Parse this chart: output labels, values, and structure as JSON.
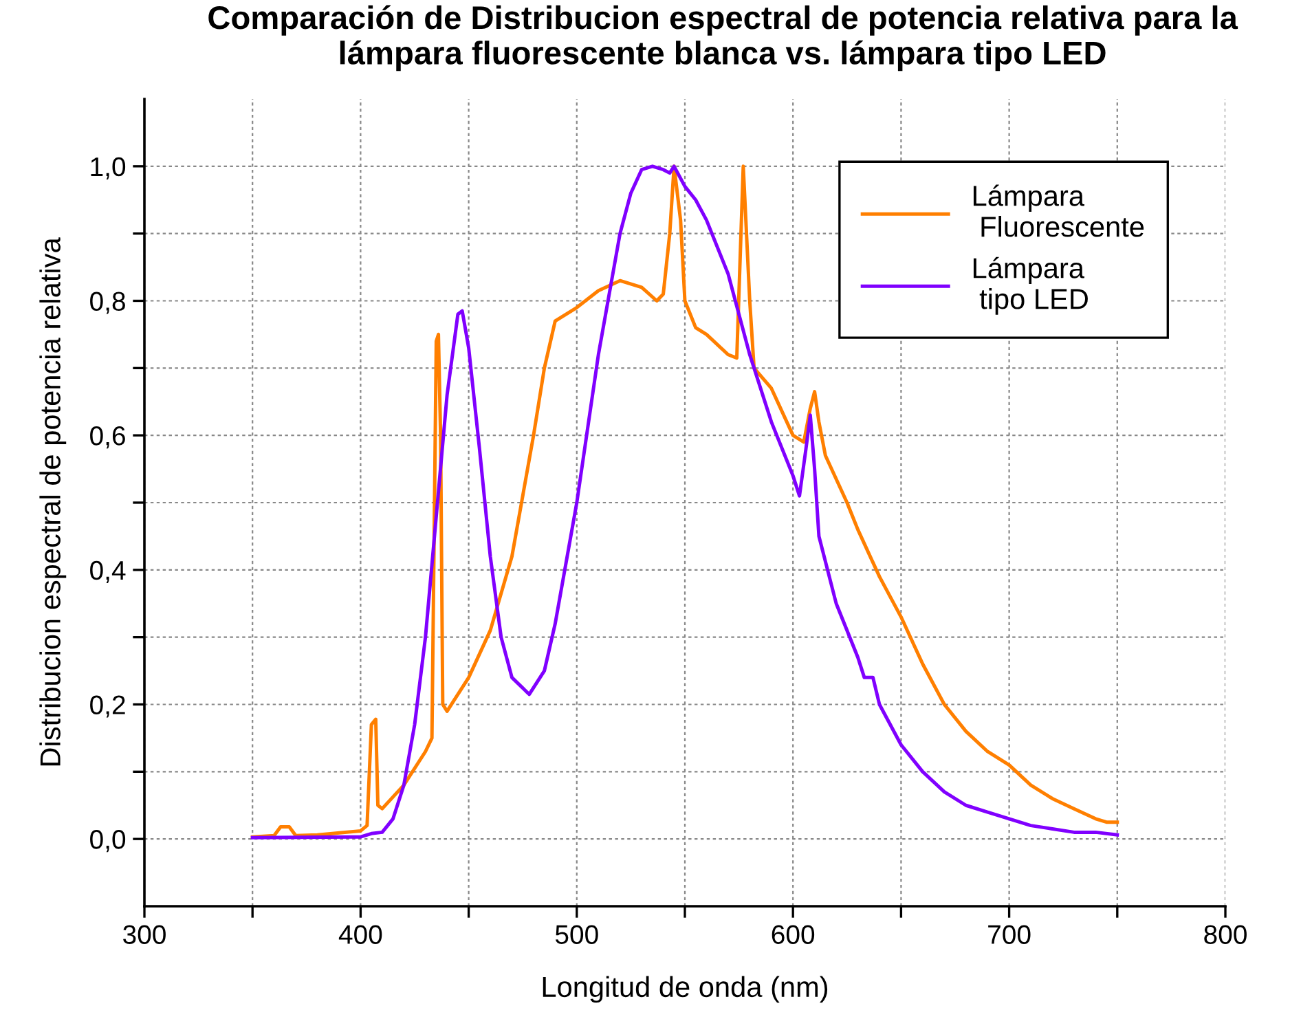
{
  "chart_data": {
    "type": "line",
    "title": "Comparación de Distribucion espectral de potencia relativa para la\nlámpara fluorescente blanca vs. lámpara tipo LED",
    "xlabel": "Longitud de onda (nm)",
    "ylabel": "Distribucion espectral de potencia relativa",
    "xlim": [
      300,
      800
    ],
    "ylim": [
      -0.1,
      1.1
    ],
    "xticks": [
      300,
      {
        "value": 350,
        "label": null
      },
      400,
      {
        "value": 450,
        "label": null
      },
      500,
      {
        "value": 550,
        "label": null
      },
      600,
      {
        "value": 650,
        "label": null
      },
      700,
      {
        "value": 750,
        "label": null
      },
      800
    ],
    "yticks": [
      {
        "value": 0.0,
        "label": "0,0"
      },
      {
        "value": 0.1,
        "label": null
      },
      {
        "value": 0.2,
        "label": "0,2"
      },
      {
        "value": 0.3,
        "label": null
      },
      {
        "value": 0.4,
        "label": "0,4"
      },
      {
        "value": 0.5,
        "label": null
      },
      {
        "value": 0.6,
        "label": "0,6"
      },
      {
        "value": 0.7,
        "label": null
      },
      {
        "value": 0.8,
        "label": "0,8"
      },
      {
        "value": 0.9,
        "label": null
      },
      {
        "value": 1.0,
        "label": "1,0"
      }
    ],
    "grid": true,
    "legend": "top right",
    "marker": "none",
    "line_style": "solid",
    "series": [
      {
        "name": "Lámpara\n Fluorescente",
        "color": "#ff7f00",
        "x": [
          350,
          360,
          363,
          367,
          370,
          380,
          400,
          403,
          405,
          407,
          408,
          410,
          420,
          430,
          433,
          435,
          436,
          437,
          438,
          440,
          450,
          460,
          470,
          480,
          485,
          490,
          495,
          500,
          510,
          520,
          530,
          537,
          540,
          543,
          545,
          548,
          550,
          555,
          560,
          570,
          574,
          577,
          580,
          582,
          590,
          600,
          605,
          608,
          610,
          612,
          615,
          625,
          630,
          640,
          650,
          660,
          670,
          680,
          690,
          700,
          710,
          720,
          730,
          740,
          745,
          750
        ],
        "values": [
          0.003,
          0.005,
          0.018,
          0.018,
          0.005,
          0.006,
          0.012,
          0.02,
          0.17,
          0.178,
          0.05,
          0.045,
          0.08,
          0.13,
          0.15,
          0.74,
          0.75,
          0.6,
          0.2,
          0.19,
          0.24,
          0.31,
          0.42,
          0.6,
          0.7,
          0.77,
          0.78,
          0.79,
          0.815,
          0.83,
          0.82,
          0.8,
          0.81,
          0.9,
          1.0,
          0.92,
          0.8,
          0.76,
          0.75,
          0.72,
          0.715,
          1.0,
          0.8,
          0.7,
          0.67,
          0.6,
          0.59,
          0.64,
          0.665,
          0.62,
          0.57,
          0.5,
          0.46,
          0.39,
          0.33,
          0.26,
          0.2,
          0.16,
          0.13,
          0.11,
          0.08,
          0.06,
          0.045,
          0.03,
          0.025,
          0.025
        ]
      },
      {
        "name": "Lámpara\n tipo LED",
        "color": "#8000ff",
        "x": [
          350,
          400,
          405,
          410,
          415,
          420,
          425,
          430,
          435,
          440,
          445,
          447,
          450,
          455,
          460,
          465,
          470,
          478,
          485,
          490,
          500,
          510,
          520,
          525,
          530,
          535,
          540,
          543,
          545,
          550,
          555,
          560,
          570,
          580,
          590,
          600,
          603,
          606,
          608,
          610,
          612,
          620,
          630,
          633,
          637,
          640,
          650,
          660,
          670,
          680,
          690,
          700,
          710,
          720,
          730,
          740,
          750
        ],
        "values": [
          0.002,
          0.003,
          0.008,
          0.01,
          0.03,
          0.08,
          0.17,
          0.3,
          0.48,
          0.66,
          0.78,
          0.785,
          0.73,
          0.58,
          0.42,
          0.3,
          0.24,
          0.215,
          0.25,
          0.32,
          0.5,
          0.72,
          0.9,
          0.96,
          0.995,
          1.0,
          0.995,
          0.99,
          1.0,
          0.97,
          0.95,
          0.92,
          0.84,
          0.72,
          0.62,
          0.54,
          0.51,
          0.58,
          0.63,
          0.55,
          0.45,
          0.35,
          0.27,
          0.24,
          0.24,
          0.2,
          0.14,
          0.1,
          0.07,
          0.05,
          0.04,
          0.03,
          0.02,
          0.015,
          0.01,
          0.01,
          0.006
        ]
      }
    ]
  }
}
